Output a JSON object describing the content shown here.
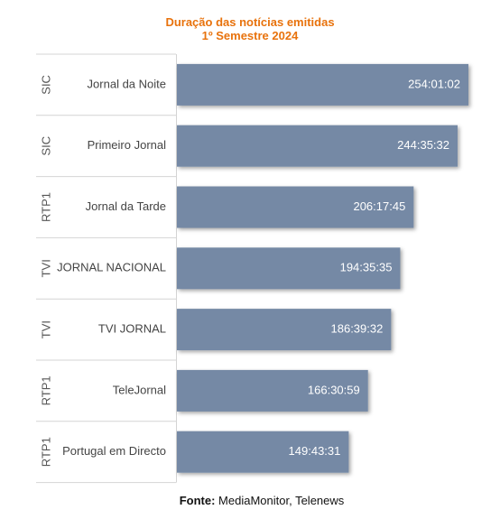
{
  "chart_data": {
    "type": "bar",
    "orientation": "horizontal",
    "title": "Duração das notícias emitidas",
    "subtitle": "1º Semestre 2024",
    "categories": [
      {
        "group": "SIC",
        "label": "Jornal da Noite"
      },
      {
        "group": "SIC",
        "label": "Primeiro Jornal"
      },
      {
        "group": "RTP1",
        "label": "Jornal da Tarde"
      },
      {
        "group": "TVI",
        "label": "JORNAL NACIONAL"
      },
      {
        "group": "TVI",
        "label": "TVI JORNAL"
      },
      {
        "group": "RTP1",
        "label": "TeleJornal"
      },
      {
        "group": "RTP1",
        "label": "Portugal em Directo"
      }
    ],
    "values": [
      "254:01:02",
      "244:35:32",
      "206:17:45",
      "194:35:35",
      "186:39:32",
      "166:30:59",
      "149:43:31"
    ],
    "grid": false,
    "legend": "none",
    "bar_color": "#7489a5",
    "title_color": "#e8720c"
  },
  "source": {
    "label": "Fonte:",
    "text": "MediaMonitor, Telenews"
  }
}
